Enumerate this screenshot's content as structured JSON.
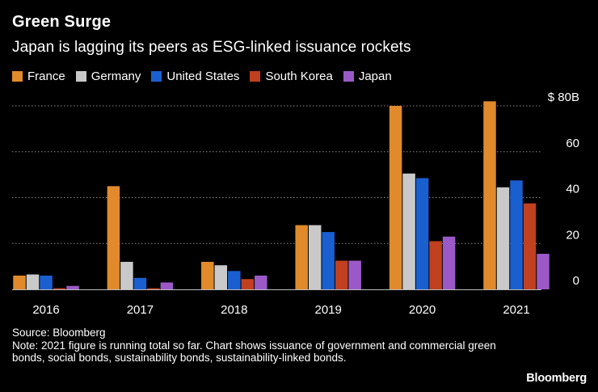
{
  "header": {
    "title": "Green Surge",
    "subtitle": "Japan is lagging its peers as ESG-linked issuance rockets"
  },
  "chart_data": {
    "type": "bar",
    "categories": [
      "2016",
      "2017",
      "2018",
      "2019",
      "2020",
      "2021"
    ],
    "series": [
      {
        "name": "France",
        "color": "#e08a2c",
        "values": [
          6,
          45,
          12,
          28,
          80,
          82
        ]
      },
      {
        "name": "Germany",
        "color": "#c9c9c9",
        "values": [
          6.5,
          12,
          10.5,
          28,
          50.5,
          44.5
        ]
      },
      {
        "name": "United States",
        "color": "#1a5fd0",
        "values": [
          6,
          5,
          8,
          25,
          48.5,
          47.5
        ]
      },
      {
        "name": "South Korea",
        "color": "#c0401f",
        "values": [
          0.5,
          0.5,
          4.5,
          12.5,
          21,
          37.5
        ]
      },
      {
        "name": "Japan",
        "color": "#9b59c7",
        "values": [
          1.5,
          3,
          6,
          12.5,
          23,
          15.5
        ]
      }
    ],
    "y_ticks": [
      {
        "value": 0,
        "label": "0"
      },
      {
        "value": 20,
        "label": "20"
      },
      {
        "value": 40,
        "label": "40"
      },
      {
        "value": 60,
        "label": "60"
      },
      {
        "value": 80,
        "label": "$ 80B"
      }
    ],
    "ylim": [
      0,
      80
    ],
    "ylabel": "",
    "xlabel": "",
    "grid": true,
    "legend_position": "top-left"
  },
  "footer": {
    "source": "Source: Bloomberg",
    "note": "Note: 2021 figure is running total so far. Chart shows issuance of government and commercial green bonds, social bonds, sustainability bonds, sustainability-linked bonds.",
    "brand": "Bloomberg"
  }
}
